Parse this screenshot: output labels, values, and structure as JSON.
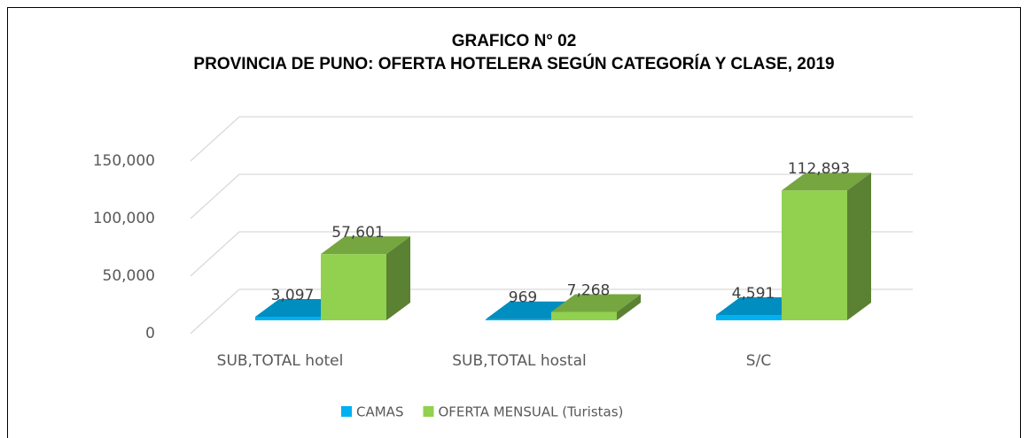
{
  "chart_data": {
    "type": "bar3d",
    "title": "GRAFICO N° 02",
    "subtitle": "PROVINCIA DE PUNO: OFERTA HOTELERA SEGÚN CATEGORÍA Y CLASE, 2019",
    "categories": [
      "SUB,TOTAL hotel",
      "SUB,TOTAL hostal",
      "S/C"
    ],
    "series": [
      {
        "name": "CAMAS",
        "color": "#00b0f0",
        "values": [
          3097,
          969,
          4591
        ],
        "value_labels": [
          "3,097",
          "969",
          "4,591"
        ]
      },
      {
        "name": "OFERTA MENSUAL (Turistas)",
        "color": "#92d050",
        "values": [
          57601,
          7268,
          112893
        ],
        "value_labels": [
          "57,601",
          "7,268",
          "112,893"
        ]
      }
    ],
    "ylim": [
      0,
      150000
    ],
    "yticks": [
      0,
      {
        "value": 50000,
        "label": "50,000"
      },
      {
        "value": 100000,
        "label": "100,000"
      },
      {
        "value": 150000,
        "label": "150,000"
      }
    ],
    "grid": true,
    "legend": "bottom"
  }
}
